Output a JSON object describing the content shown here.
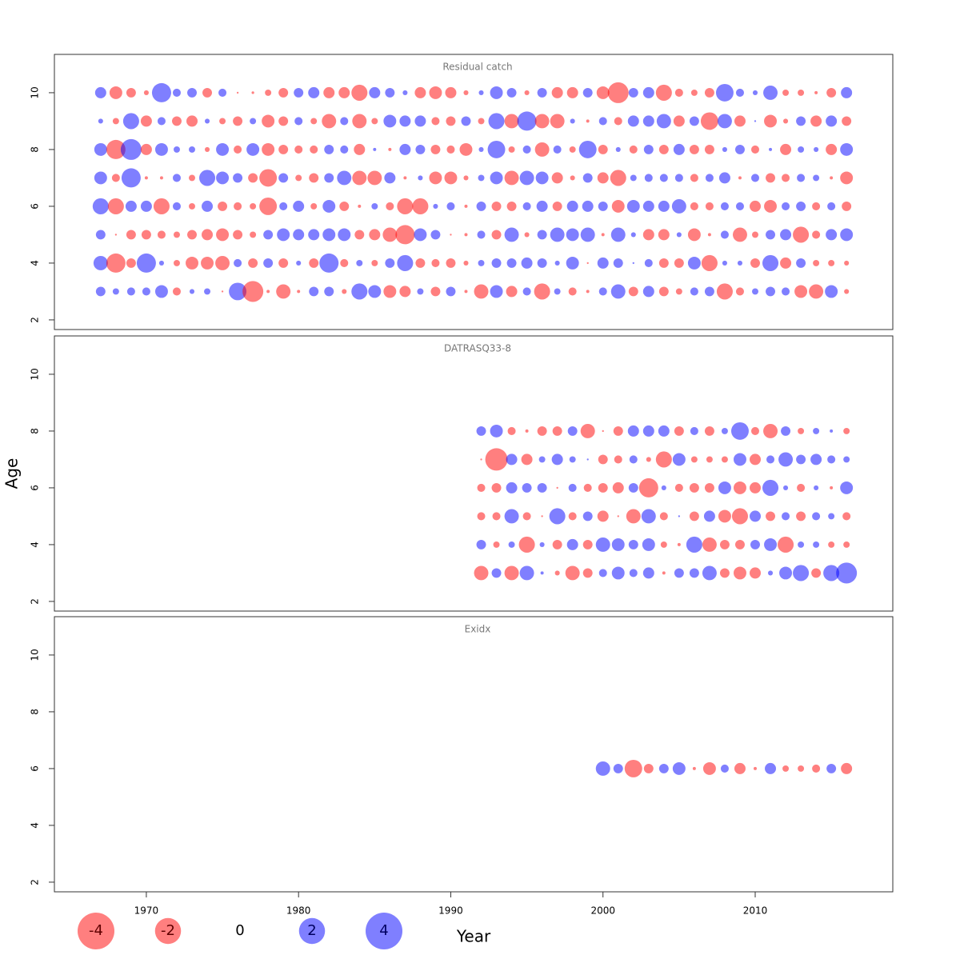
{
  "chart_data": [
    {
      "type": "bubble",
      "title": "Residual catch",
      "x": [
        1967,
        1968,
        1969,
        1970,
        1971,
        1972,
        1973,
        1974,
        1975,
        1976,
        1977,
        1978,
        1979,
        1980,
        1981,
        1982,
        1983,
        1984,
        1985,
        1986,
        1987,
        1988,
        1989,
        1990,
        1991,
        1992,
        1993,
        1994,
        1995,
        1996,
        1997,
        1998,
        1999,
        2000,
        2001,
        2002,
        2003,
        2004,
        2005,
        2006,
        2007,
        2008,
        2009,
        2010,
        2011,
        2012,
        2013,
        2014,
        2015,
        2016
      ],
      "ages": [
        10,
        9,
        8,
        7,
        6,
        5,
        4,
        3
      ],
      "values": [
        [
          0.37,
          -0.48,
          -0.27,
          -0.07,
          1.09,
          0.19,
          0.27,
          -0.27,
          0.19,
          -0.01,
          -0.02,
          -0.12,
          -0.27,
          0.27,
          0.37,
          -0.37,
          -0.37,
          -0.76,
          0.37,
          0.27,
          0.07,
          -0.37,
          -0.48,
          -0.37,
          -0.07,
          0.07,
          0.48,
          0.27,
          -0.07,
          0.27,
          -0.37,
          -0.37,
          0.27,
          -0.48,
          -1.28,
          0.27,
          0.37,
          -0.76,
          -0.19,
          -0.12,
          -0.27,
          0.91,
          0.19,
          0.07,
          0.61,
          -0.12,
          -0.12,
          -0.03,
          -0.27,
          0.37
        ],
        [
          0.07,
          -0.12,
          0.76,
          -0.37,
          0.19,
          -0.27,
          -0.37,
          0.07,
          -0.12,
          -0.27,
          0.12,
          -0.48,
          -0.27,
          0.19,
          -0.12,
          -0.61,
          0.19,
          -0.61,
          -0.12,
          0.48,
          0.37,
          0.37,
          -0.19,
          -0.27,
          0.27,
          -0.12,
          0.76,
          -0.61,
          1.09,
          -0.61,
          -0.61,
          0.07,
          -0.03,
          0.19,
          -0.19,
          0.37,
          0.37,
          0.61,
          -0.37,
          0.27,
          -0.91,
          0.61,
          -0.37,
          0.01,
          -0.48,
          -0.07,
          0.27,
          -0.37,
          0.37,
          -0.27
        ],
        [
          0.48,
          -1.09,
          1.28,
          -0.37,
          0.48,
          0.12,
          0.12,
          -0.07,
          0.48,
          -0.19,
          0.48,
          -0.48,
          -0.27,
          -0.19,
          -0.19,
          0.27,
          0.19,
          -0.37,
          0.03,
          -0.03,
          0.37,
          0.27,
          -0.27,
          -0.19,
          -0.48,
          0.07,
          0.91,
          -0.12,
          0.19,
          -0.61,
          0.19,
          -0.12,
          0.91,
          -0.27,
          0.07,
          -0.19,
          0.27,
          -0.27,
          0.37,
          -0.27,
          -0.27,
          0.07,
          0.27,
          -0.19,
          0.03,
          -0.37,
          0.12,
          0.07,
          -0.37,
          0.48
        ],
        [
          0.48,
          -0.19,
          1.09,
          -0.03,
          -0.03,
          0.19,
          -0.12,
          0.76,
          0.48,
          0.27,
          -0.27,
          -0.91,
          0.27,
          -0.12,
          -0.27,
          0.27,
          0.61,
          -0.61,
          -0.61,
          0.37,
          -0.03,
          0.07,
          -0.48,
          -0.48,
          -0.07,
          0.12,
          0.48,
          -0.61,
          0.61,
          0.48,
          -0.37,
          -0.07,
          0.27,
          -0.37,
          -0.76,
          0.12,
          0.19,
          0.19,
          0.19,
          -0.19,
          0.19,
          0.37,
          -0.03,
          0.19,
          -0.27,
          -0.19,
          0.19,
          0.12,
          -0.03,
          -0.48
        ],
        [
          0.76,
          -0.76,
          0.37,
          0.37,
          -0.76,
          0.19,
          -0.12,
          0.37,
          -0.27,
          -0.19,
          -0.12,
          -0.91,
          0.19,
          0.37,
          -0.12,
          0.48,
          -0.27,
          -0.03,
          0.12,
          -0.19,
          -0.76,
          -0.76,
          0.07,
          0.19,
          -0.03,
          0.27,
          -0.27,
          -0.27,
          0.19,
          0.37,
          -0.27,
          0.37,
          0.37,
          0.27,
          -0.48,
          0.48,
          0.37,
          0.37,
          0.61,
          -0.19,
          -0.19,
          0.19,
          0.19,
          -0.37,
          -0.48,
          0.19,
          0.27,
          -0.19,
          0.19,
          -0.27
        ],
        [
          0.27,
          -0.01,
          -0.27,
          -0.27,
          -0.19,
          -0.12,
          -0.27,
          -0.37,
          -0.48,
          -0.27,
          -0.12,
          0.27,
          0.48,
          0.37,
          0.37,
          0.48,
          0.48,
          -0.27,
          -0.37,
          -0.61,
          -1.09,
          0.48,
          0.27,
          -0.01,
          -0.03,
          0.19,
          -0.27,
          0.61,
          -0.07,
          0.27,
          0.61,
          0.48,
          0.61,
          -0.03,
          0.61,
          0.07,
          -0.37,
          -0.37,
          0.07,
          -0.48,
          -0.03,
          0.19,
          -0.61,
          -0.12,
          0.27,
          0.37,
          -0.76,
          -0.19,
          0.37,
          0.48
        ],
        [
          0.61,
          -1.09,
          -0.27,
          1.09,
          0.07,
          -0.12,
          -0.48,
          -0.48,
          -0.61,
          0.19,
          -0.27,
          0.27,
          -0.27,
          0.07,
          -0.27,
          1.09,
          -0.19,
          0.12,
          -0.12,
          0.27,
          0.76,
          -0.27,
          -0.19,
          -0.27,
          -0.07,
          0.12,
          0.27,
          0.27,
          0.37,
          0.27,
          0.07,
          0.48,
          -0.01,
          0.37,
          0.27,
          0.01,
          0.19,
          -0.27,
          -0.27,
          0.48,
          -0.76,
          0.07,
          0.07,
          -0.27,
          0.76,
          -0.37,
          0.27,
          -0.12,
          -0.12,
          -0.07
        ],
        [
          0.27,
          0.12,
          0.19,
          0.19,
          0.48,
          -0.19,
          0.07,
          0.12,
          -0.01,
          0.91,
          -1.28,
          -0.03,
          -0.61,
          -0.03,
          0.27,
          0.27,
          -0.07,
          0.76,
          0.48,
          -0.48,
          -0.37,
          0.12,
          -0.27,
          0.27,
          -0.03,
          -0.61,
          0.48,
          -0.37,
          0.19,
          -0.76,
          0.12,
          -0.19,
          -0.03,
          0.19,
          0.61,
          -0.27,
          0.37,
          -0.27,
          -0.12,
          0.19,
          0.27,
          -0.76,
          -0.19,
          0.12,
          0.27,
          0.19,
          -0.48,
          -0.61,
          0.48,
          -0.07
        ]
      ],
      "xlim": [
        1963.96,
        2019.04
      ],
      "ylim": [
        1.66,
        11.35
      ],
      "yticks": [
        2,
        4,
        6,
        8,
        10
      ]
    },
    {
      "type": "bubble",
      "title": "DATRASQ33-8",
      "ylabel": "Age",
      "x": [
        1992,
        1993,
        1994,
        1995,
        1996,
        1997,
        1998,
        1999,
        2000,
        2001,
        2002,
        2003,
        2004,
        2005,
        2006,
        2007,
        2008,
        2009,
        2010,
        2011,
        2012,
        2013,
        2014,
        2015,
        2016
      ],
      "ages": [
        8,
        7,
        6,
        5,
        4,
        3
      ],
      "values": [
        [
          0.27,
          0.48,
          -0.19,
          -0.03,
          -0.27,
          -0.27,
          0.27,
          -0.61,
          -0.01,
          -0.27,
          0.37,
          0.37,
          0.37,
          -0.27,
          0.19,
          -0.27,
          0.12,
          0.91,
          -0.19,
          -0.61,
          0.27,
          -0.12,
          0.12,
          0.03,
          -0.12
        ],
        [
          -0.01,
          -1.48,
          0.37,
          -0.37,
          0.12,
          0.37,
          0.12,
          0.01,
          -0.27,
          -0.19,
          0.19,
          -0.07,
          -0.76,
          0.48,
          -0.12,
          -0.12,
          -0.12,
          0.48,
          -0.37,
          0.19,
          0.61,
          0.27,
          0.37,
          0.19,
          0.12
        ],
        [
          -0.19,
          -0.27,
          0.37,
          0.27,
          0.27,
          -0.01,
          0.19,
          -0.19,
          -0.27,
          -0.37,
          0.27,
          -1.09,
          0.07,
          -0.19,
          -0.27,
          -0.27,
          0.48,
          -0.48,
          -0.37,
          0.76,
          0.07,
          -0.19,
          0.07,
          -0.03,
          0.48
        ],
        [
          -0.19,
          -0.19,
          0.61,
          -0.19,
          -0.01,
          0.76,
          -0.19,
          0.27,
          -0.37,
          -0.01,
          -0.61,
          0.61,
          -0.19,
          0.01,
          -0.27,
          0.37,
          -0.48,
          -0.76,
          0.37,
          -0.27,
          0.19,
          -0.27,
          0.19,
          0.12,
          -0.19
        ],
        [
          0.27,
          -0.12,
          0.12,
          -0.76,
          0.07,
          -0.27,
          0.37,
          -0.27,
          0.61,
          0.48,
          0.27,
          0.48,
          -0.12,
          -0.03,
          0.76,
          -0.61,
          -0.27,
          -0.27,
          0.27,
          0.48,
          -0.76,
          0.12,
          0.12,
          -0.12,
          -0.12
        ],
        [
          -0.61,
          0.27,
          -0.61,
          0.61,
          0.03,
          -0.07,
          -0.61,
          -0.27,
          0.19,
          0.48,
          0.19,
          0.37,
          -0.03,
          0.27,
          0.27,
          0.61,
          -0.27,
          -0.48,
          -0.37,
          0.07,
          0.48,
          0.76,
          -0.27,
          0.76,
          1.28
        ]
      ],
      "xlim": [
        1963.96,
        2019.04
      ],
      "ylim": [
        1.66,
        11.35
      ],
      "yticks": [
        2,
        4,
        6,
        8,
        10
      ]
    },
    {
      "type": "bubble",
      "title": "Exidx",
      "xlabel": "Year",
      "x": [
        2000,
        2001,
        2002,
        2003,
        2004,
        2005,
        2006,
        2007,
        2008,
        2009,
        2010,
        2011,
        2012,
        2013,
        2014,
        2015,
        2016
      ],
      "ages": [
        6
      ],
      "values": [
        [
          0.61,
          0.27,
          -0.91,
          -0.27,
          0.27,
          0.48,
          -0.03,
          -0.48,
          0.19,
          -0.37,
          -0.03,
          0.37,
          -0.12,
          -0.12,
          -0.19,
          0.27,
          -0.37
        ]
      ],
      "xlim": [
        1963.96,
        2019.04
      ],
      "ylim": [
        1.66,
        11.35
      ],
      "yticks": [
        2,
        4,
        6,
        8,
        10
      ],
      "xticks": [
        1970,
        1980,
        1990,
        2000,
        2010
      ]
    }
  ],
  "colors": {
    "positive": "#0000ff80",
    "negative": "#ff000080"
  },
  "legend": {
    "values": [
      -4,
      -2,
      0,
      2,
      4
    ]
  }
}
